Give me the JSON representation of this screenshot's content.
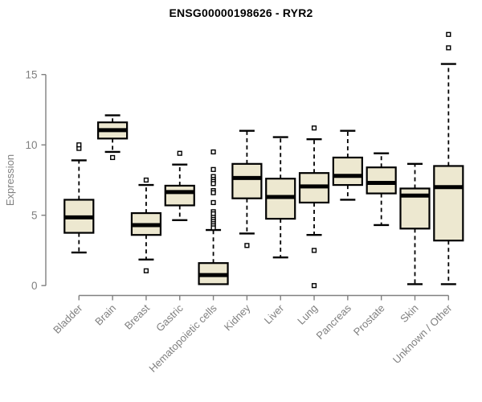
{
  "title": "ENSG00000198626 - RYR2",
  "chart_data": {
    "type": "boxplot",
    "title": "ENSG00000198626 - RYR2",
    "xlabel": "",
    "ylabel": "Expression",
    "ylim": [
      0,
      18
    ],
    "yticks": [
      0,
      5,
      10,
      15
    ],
    "grid": false,
    "legend": "none",
    "box_fill_color": "#ede8d0",
    "box_line_color": "#000000",
    "axis_color": "#808080",
    "categories": [
      "Bladder",
      "Brain",
      "Breast",
      "Gastric",
      "Hematopoietic cells",
      "Kidney",
      "Liver",
      "Lung",
      "Pancreas",
      "Prostate",
      "Skin",
      "Unknown / Other"
    ],
    "series": [
      {
        "category": "Bladder",
        "whisker_low": 2.35,
        "q1": 3.75,
        "median": 4.85,
        "q3": 6.1,
        "whisker_high": 8.9,
        "outliers": [
          9.75,
          10.0
        ]
      },
      {
        "category": "Brain",
        "whisker_low": 9.5,
        "q1": 10.45,
        "median": 11.05,
        "q3": 11.6,
        "whisker_high": 12.1,
        "outliers": [
          9.1
        ]
      },
      {
        "category": "Breast",
        "whisker_low": 1.85,
        "q1": 3.6,
        "median": 4.3,
        "q3": 5.15,
        "whisker_high": 7.15,
        "outliers": [
          7.5,
          1.05
        ]
      },
      {
        "category": "Gastric",
        "whisker_low": 4.65,
        "q1": 5.7,
        "median": 6.65,
        "q3": 7.1,
        "whisker_high": 8.6,
        "outliers": [
          9.4
        ]
      },
      {
        "category": "Hematopoietic cells",
        "whisker_low": 0.1,
        "q1": 0.1,
        "median": 0.75,
        "q3": 1.6,
        "whisker_high": 3.95,
        "outliers": [
          9.5,
          8.25,
          7.75,
          7.55,
          7.4,
          7.25,
          6.75,
          6.6,
          5.9,
          5.25,
          5.1,
          4.85,
          4.7,
          4.55,
          4.4,
          4.25,
          4.1
        ]
      },
      {
        "category": "Kidney",
        "whisker_low": 3.7,
        "q1": 6.2,
        "median": 7.65,
        "q3": 8.65,
        "whisker_high": 11.0,
        "outliers": [
          2.85
        ]
      },
      {
        "category": "Liver",
        "whisker_low": 2.0,
        "q1": 4.75,
        "median": 6.3,
        "q3": 7.6,
        "whisker_high": 10.55,
        "outliers": []
      },
      {
        "category": "Lung",
        "whisker_low": 3.6,
        "q1": 5.9,
        "median": 7.05,
        "q3": 8.0,
        "whisker_high": 10.4,
        "outliers": [
          11.2,
          2.5,
          0.0
        ]
      },
      {
        "category": "Pancreas",
        "whisker_low": 6.1,
        "q1": 7.15,
        "median": 7.8,
        "q3": 9.1,
        "whisker_high": 11.0,
        "outliers": []
      },
      {
        "category": "Prostate",
        "whisker_low": 4.3,
        "q1": 6.55,
        "median": 7.3,
        "q3": 8.4,
        "whisker_high": 9.4,
        "outliers": []
      },
      {
        "category": "Skin",
        "whisker_low": 0.1,
        "q1": 4.05,
        "median": 6.4,
        "q3": 6.9,
        "whisker_high": 8.65,
        "outliers": []
      },
      {
        "category": "Unknown / Other",
        "whisker_low": 0.1,
        "q1": 3.2,
        "median": 7.0,
        "q3": 8.5,
        "whisker_high": 15.75,
        "outliers": [
          17.85,
          16.9
        ]
      }
    ]
  }
}
